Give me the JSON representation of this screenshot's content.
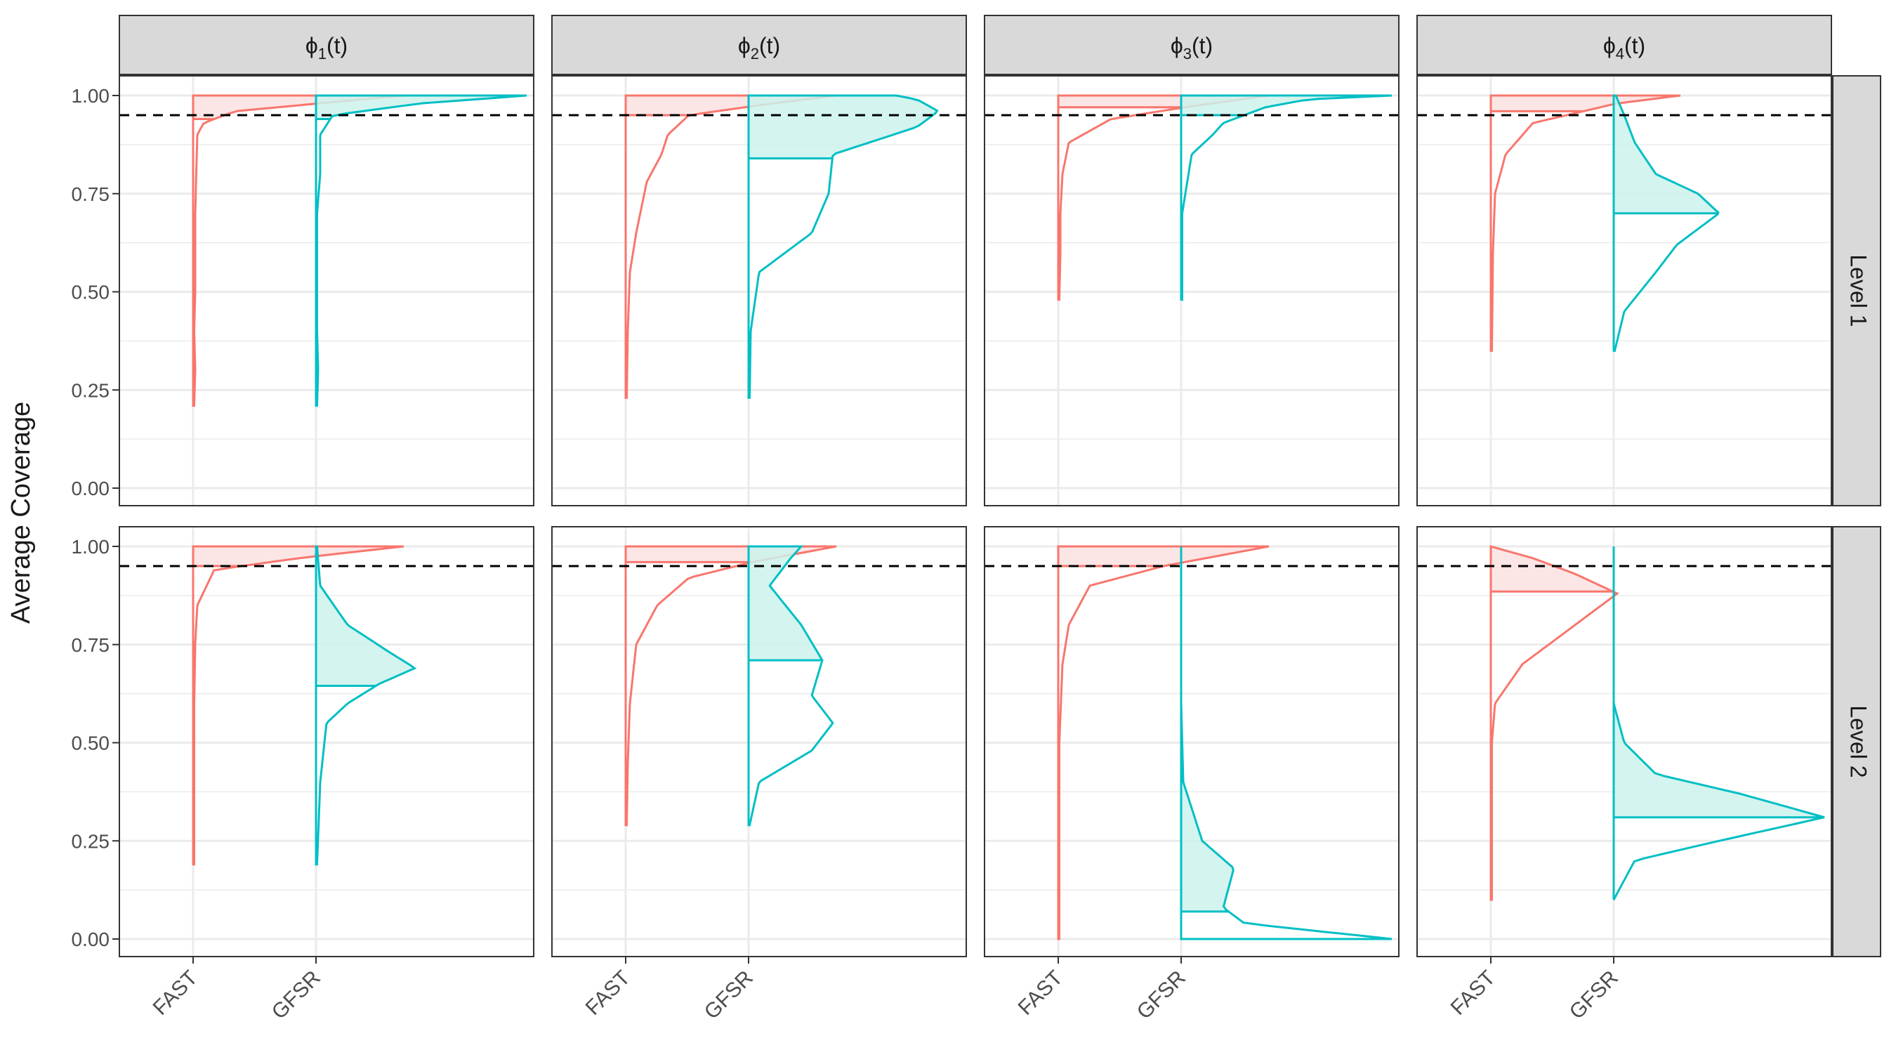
{
  "chart_data": {
    "type": "area",
    "subtype": "faceted half-violin (density) plot",
    "ylabel": "Average Coverage",
    "xlabel": "",
    "ylim": [
      0,
      1
    ],
    "y_ticks": [
      "0.00",
      "0.25",
      "0.50",
      "0.75",
      "1.00"
    ],
    "categories": [
      "FAST",
      "GFSR"
    ],
    "col_facets": [
      {
        "label": "ϕ",
        "sub": "1",
        "suffix": "(t)"
      },
      {
        "label": "ϕ",
        "sub": "2",
        "suffix": "(t)"
      },
      {
        "label": "ϕ",
        "sub": "3",
        "suffix": "(t)"
      },
      {
        "label": "ϕ",
        "sub": "4",
        "suffix": "(t)"
      }
    ],
    "row_facets": [
      "Level 1",
      "Level 2"
    ],
    "reference_line": 0.95,
    "grid": true,
    "legend": "none",
    "colors": {
      "FAST": "#F8766D",
      "GFSR": "#00BFC4",
      "FAST_fill": "#FBE1E0",
      "GFSR_fill": "#CCF2EC"
    },
    "panels": [
      [
        {
          "FAST": {
            "range": [
              0.21,
              1.0
            ],
            "median": 0.94,
            "density": [
              [
                0.21,
                0.005
              ],
              [
                0.3,
                0.01
              ],
              [
                0.4,
                0.005
              ],
              [
                0.5,
                0.01
              ],
              [
                0.6,
                0.01
              ],
              [
                0.7,
                0.01
              ],
              [
                0.8,
                0.015
              ],
              [
                0.9,
                0.02
              ],
              [
                0.93,
                0.05
              ],
              [
                0.96,
                0.2
              ],
              [
                0.98,
                0.6
              ],
              [
                1.0,
                1.0
              ]
            ]
          },
          "GFSR": {
            "range": [
              0.21,
              1.0
            ],
            "median": 0.94,
            "density": [
              [
                0.21,
                0.005
              ],
              [
                0.3,
                0.01
              ],
              [
                0.4,
                0.005
              ],
              [
                0.5,
                0.005
              ],
              [
                0.7,
                0.005
              ],
              [
                0.8,
                0.02
              ],
              [
                0.9,
                0.02
              ],
              [
                0.95,
                0.08
              ],
              [
                0.98,
                0.5
              ],
              [
                1.0,
                1.0
              ]
            ]
          }
        },
        {
          "FAST": {
            "range": [
              0.23,
              1.0
            ],
            "median": 0.95,
            "density": [
              [
                0.23,
                0.005
              ],
              [
                0.4,
                0.01
              ],
              [
                0.55,
                0.02
              ],
              [
                0.65,
                0.05
              ],
              [
                0.78,
                0.1
              ],
              [
                0.85,
                0.17
              ],
              [
                0.9,
                0.2
              ],
              [
                0.95,
                0.3
              ],
              [
                0.98,
                0.7
              ],
              [
                1.0,
                1.0
              ]
            ]
          },
          "GFSR": {
            "range": [
              0.23,
              1.0
            ],
            "median": 0.84,
            "density": [
              [
                0.23,
                0.005
              ],
              [
                0.4,
                0.01
              ],
              [
                0.55,
                0.05
              ],
              [
                0.65,
                0.3
              ],
              [
                0.75,
                0.38
              ],
              [
                0.85,
                0.4
              ],
              [
                0.92,
                0.8
              ],
              [
                0.96,
                0.9
              ],
              [
                0.99,
                0.8
              ],
              [
                1.0,
                0.7
              ]
            ]
          }
        },
        {
          "FAST": {
            "range": [
              0.48,
              1.0
            ],
            "median": 0.97,
            "density": [
              [
                0.48,
                0.005
              ],
              [
                0.6,
                0.01
              ],
              [
                0.7,
                0.01
              ],
              [
                0.8,
                0.02
              ],
              [
                0.88,
                0.05
              ],
              [
                0.94,
                0.25
              ],
              [
                0.97,
                0.6
              ],
              [
                1.0,
                1.0
              ]
            ]
          },
          "GFSR": {
            "range": [
              0.48,
              1.0
            ],
            "median": 0.95,
            "density": [
              [
                0.48,
                0.005
              ],
              [
                0.7,
                0.005
              ],
              [
                0.85,
                0.05
              ],
              [
                0.9,
                0.15
              ],
              [
                0.93,
                0.2
              ],
              [
                0.97,
                0.4
              ],
              [
                0.99,
                0.6
              ],
              [
                1.0,
                1.0
              ]
            ]
          }
        },
        {
          "FAST": {
            "range": [
              0.35,
              1.0
            ],
            "median": 0.96,
            "density": [
              [
                0.35,
                0.005
              ],
              [
                0.6,
                0.01
              ],
              [
                0.75,
                0.02
              ],
              [
                0.85,
                0.07
              ],
              [
                0.93,
                0.2
              ],
              [
                0.98,
                0.6
              ],
              [
                1.0,
                0.9
              ]
            ]
          },
          "GFSR": {
            "range": [
              0.35,
              1.0
            ],
            "median": 0.7,
            "density": [
              [
                0.35,
                0.005
              ],
              [
                0.45,
                0.05
              ],
              [
                0.55,
                0.2
              ],
              [
                0.62,
                0.3
              ],
              [
                0.7,
                0.5
              ],
              [
                0.75,
                0.4
              ],
              [
                0.8,
                0.2
              ],
              [
                0.88,
                0.1
              ],
              [
                0.95,
                0.05
              ],
              [
                1.0,
                0.01
              ]
            ]
          }
        }
      ],
      [
        {
          "FAST": {
            "range": [
              0.19,
              1.0
            ],
            "median": 0.95,
            "density": [
              [
                0.19,
                0.005
              ],
              [
                0.4,
                0.005
              ],
              [
                0.6,
                0.005
              ],
              [
                0.75,
                0.01
              ],
              [
                0.85,
                0.02
              ],
              [
                0.94,
                0.1
              ],
              [
                0.97,
                0.5
              ],
              [
                1.0,
                1.0
              ]
            ]
          },
          "GFSR": {
            "range": [
              0.19,
              1.0
            ],
            "median": 0.645,
            "density": [
              [
                0.19,
                0.005
              ],
              [
                0.4,
                0.02
              ],
              [
                0.55,
                0.05
              ],
              [
                0.6,
                0.15
              ],
              [
                0.65,
                0.3
              ],
              [
                0.69,
                0.47
              ],
              [
                0.73,
                0.35
              ],
              [
                0.8,
                0.15
              ],
              [
                0.9,
                0.02
              ],
              [
                1.0,
                0.005
              ]
            ]
          }
        },
        {
          "FAST": {
            "range": [
              0.29,
              1.0
            ],
            "median": 0.96,
            "density": [
              [
                0.29,
                0.005
              ],
              [
                0.45,
                0.01
              ],
              [
                0.6,
                0.02
              ],
              [
                0.75,
                0.05
              ],
              [
                0.85,
                0.15
              ],
              [
                0.92,
                0.3
              ],
              [
                0.96,
                0.6
              ],
              [
                1.0,
                1.0
              ]
            ]
          },
          "GFSR": {
            "range": [
              0.29,
              1.0
            ],
            "median": 0.71,
            "density": [
              [
                0.29,
                0.005
              ],
              [
                0.4,
                0.05
              ],
              [
                0.48,
                0.3
              ],
              [
                0.55,
                0.4
              ],
              [
                0.62,
                0.3
              ],
              [
                0.71,
                0.35
              ],
              [
                0.8,
                0.25
              ],
              [
                0.9,
                0.1
              ],
              [
                0.97,
                0.2
              ],
              [
                1.0,
                0.25
              ]
            ]
          }
        },
        {
          "FAST": {
            "range": [
              0.0,
              1.0
            ],
            "median": 0.95,
            "density": [
              [
                0.0,
                0.005
              ],
              [
                0.5,
                0.005
              ],
              [
                0.7,
                0.02
              ],
              [
                0.8,
                0.05
              ],
              [
                0.9,
                0.15
              ],
              [
                0.95,
                0.5
              ],
              [
                1.0,
                1.0
              ]
            ]
          },
          "GFSR": {
            "range": [
              0.0,
              1.0
            ],
            "median": 0.07,
            "density": [
              [
                0.0,
                1.0
              ],
              [
                0.04,
                0.3
              ],
              [
                0.08,
                0.2
              ],
              [
                0.18,
                0.25
              ],
              [
                0.25,
                0.1
              ],
              [
                0.4,
                0.01
              ],
              [
                0.6,
                0.0
              ],
              [
                1.0,
                0.0
              ]
            ]
          }
        },
        {
          "FAST": {
            "range": [
              0.1,
              1.0
            ],
            "median": 0.885,
            "density": [
              [
                0.1,
                0.005
              ],
              [
                0.5,
                0.005
              ],
              [
                0.6,
                0.02
              ],
              [
                0.7,
                0.15
              ],
              [
                0.8,
                0.4
              ],
              [
                0.88,
                0.6
              ],
              [
                0.93,
                0.4
              ],
              [
                0.97,
                0.2
              ],
              [
                1.0,
                0.0
              ]
            ]
          },
          "GFSR": {
            "range": [
              0.1,
              1.0
            ],
            "median": 0.31,
            "density": [
              [
                0.1,
                0.0
              ],
              [
                0.2,
                0.1
              ],
              [
                0.25,
                0.5
              ],
              [
                0.31,
                1.0
              ],
              [
                0.37,
                0.6
              ],
              [
                0.42,
                0.2
              ],
              [
                0.5,
                0.05
              ],
              [
                0.6,
                0.0
              ],
              [
                1.0,
                0.0
              ]
            ]
          }
        }
      ]
    ]
  }
}
